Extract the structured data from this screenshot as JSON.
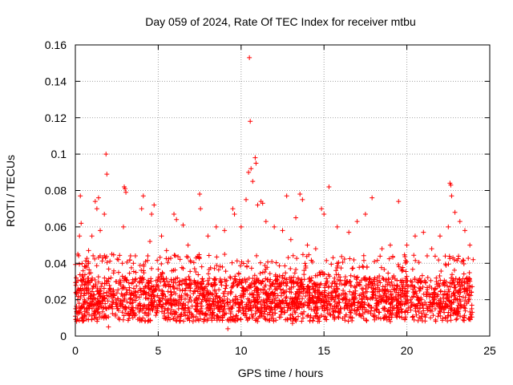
{
  "chart_data": {
    "type": "scatter",
    "title": "Day 059 of 2024, Rate Of TEC Index for receiver mtbu",
    "xlabel": "GPS time / hours",
    "ylabel": "ROTI / TECUs",
    "xlim": [
      0,
      25
    ],
    "ylim": [
      0,
      0.16
    ],
    "xticks": [
      0,
      5,
      10,
      15,
      20,
      25
    ],
    "yticks": [
      0,
      0.02,
      0.04,
      0.06,
      0.08,
      0.1,
      0.12,
      0.14,
      0.16
    ],
    "xtick_labels": [
      "0",
      "5",
      "10",
      "15",
      "20",
      "25"
    ],
    "ytick_labels": [
      "0",
      "0.02",
      "0.04",
      "0.06",
      "0.08",
      "0.1",
      "0.12",
      "0.14",
      "0.16"
    ],
    "grid": true,
    "marker": "+",
    "color": "#ff0000",
    "series": [
      {
        "name": "ROTI",
        "points": [
          [
            0.05,
            0.032
          ],
          [
            0.15,
            0.045
          ],
          [
            0.25,
            0.055
          ],
          [
            0.3,
            0.077
          ],
          [
            0.35,
            0.062
          ],
          [
            0.6,
            0.038
          ],
          [
            0.8,
            0.047
          ],
          [
            1.0,
            0.055
          ],
          [
            1.2,
            0.074
          ],
          [
            1.3,
            0.07
          ],
          [
            1.4,
            0.076
          ],
          [
            1.5,
            0.058
          ],
          [
            1.75,
            0.067
          ],
          [
            1.85,
            0.1
          ],
          [
            1.9,
            0.089
          ],
          [
            2.2,
            0.045
          ],
          [
            2.6,
            0.042
          ],
          [
            2.9,
            0.06
          ],
          [
            2.95,
            0.082
          ],
          [
            3.0,
            0.081
          ],
          [
            3.05,
            0.079
          ],
          [
            3.5,
            0.04
          ],
          [
            4.0,
            0.07
          ],
          [
            4.1,
            0.077
          ],
          [
            4.5,
            0.052
          ],
          [
            4.6,
            0.067
          ],
          [
            4.75,
            0.072
          ],
          [
            5.2,
            0.055
          ],
          [
            5.5,
            0.047
          ],
          [
            5.95,
            0.067
          ],
          [
            6.1,
            0.064
          ],
          [
            6.5,
            0.061
          ],
          [
            6.8,
            0.05
          ],
          [
            7.5,
            0.078
          ],
          [
            7.55,
            0.07
          ],
          [
            8.0,
            0.055
          ],
          [
            8.5,
            0.06
          ],
          [
            9.0,
            0.058
          ],
          [
            9.5,
            0.07
          ],
          [
            9.6,
            0.067
          ],
          [
            10.0,
            0.06
          ],
          [
            10.3,
            0.075
          ],
          [
            10.45,
            0.09
          ],
          [
            10.5,
            0.153
          ],
          [
            10.55,
            0.118
          ],
          [
            10.6,
            0.092
          ],
          [
            10.7,
            0.085
          ],
          [
            10.85,
            0.098
          ],
          [
            10.9,
            0.095
          ],
          [
            11.0,
            0.072
          ],
          [
            11.2,
            0.074
          ],
          [
            11.3,
            0.073
          ],
          [
            11.5,
            0.063
          ],
          [
            12.0,
            0.06
          ],
          [
            12.5,
            0.058
          ],
          [
            12.75,
            0.077
          ],
          [
            13.0,
            0.053
          ],
          [
            13.3,
            0.065
          ],
          [
            13.55,
            0.078
          ],
          [
            13.7,
            0.075
          ],
          [
            14.0,
            0.05
          ],
          [
            14.5,
            0.048
          ],
          [
            14.85,
            0.07
          ],
          [
            15.0,
            0.067
          ],
          [
            15.3,
            0.082
          ],
          [
            15.8,
            0.06
          ],
          [
            16.5,
            0.057
          ],
          [
            17.0,
            0.063
          ],
          [
            17.5,
            0.067
          ],
          [
            17.9,
            0.076
          ],
          [
            18.5,
            0.048
          ],
          [
            19.0,
            0.05
          ],
          [
            19.5,
            0.074
          ],
          [
            20.0,
            0.05
          ],
          [
            20.5,
            0.055
          ],
          [
            21.0,
            0.057
          ],
          [
            21.5,
            0.048
          ],
          [
            22.0,
            0.055
          ],
          [
            22.5,
            0.06
          ],
          [
            22.6,
            0.084
          ],
          [
            22.65,
            0.083
          ],
          [
            22.7,
            0.077
          ],
          [
            22.9,
            0.068
          ],
          [
            23.2,
            0.063
          ],
          [
            23.5,
            0.058
          ],
          [
            23.8,
            0.05
          ],
          [
            24.0,
            0.042
          ],
          [
            2.0,
            0.005
          ],
          [
            7.1,
            0.008
          ],
          [
            9.2,
            0.004
          ],
          [
            13.1,
            0.007
          ],
          [
            19.0,
            0.008
          ]
        ],
        "band": {
          "description": "dense cloud of measurements across the full day",
          "x_range": [
            0,
            24
          ],
          "typical_min": 0.008,
          "typical_max": 0.045,
          "center": 0.02
        }
      }
    ]
  }
}
